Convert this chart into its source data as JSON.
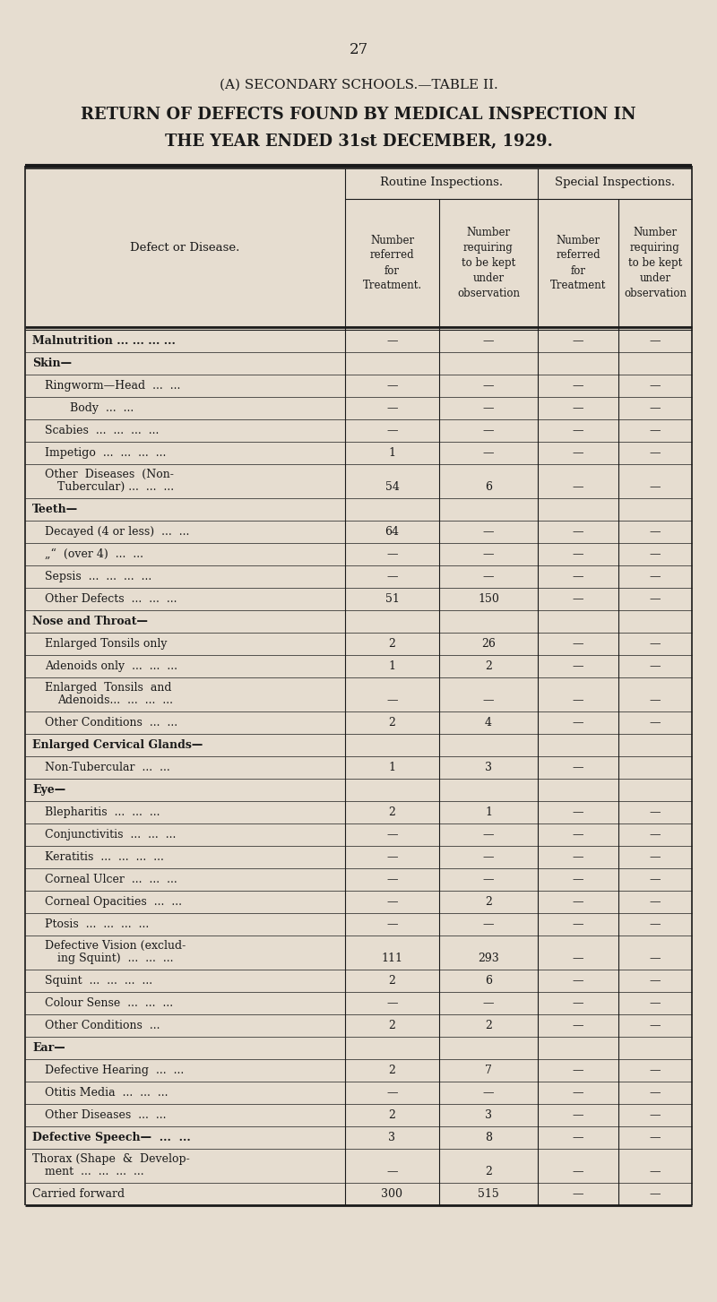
{
  "page_number": "27",
  "title_line1": "(A) SECONDARY SCHOOLS.—TABLE II.",
  "title_line2": "RETURN OF DEFECTS FOUND BY MEDICAL INSPECTION IN",
  "title_line3": "THE YEAR ENDED 31st DECEMBER, 1929.",
  "col_group1": "Routine Inspections.",
  "col_group2": "Special Inspections.",
  "col_sub1": "Number\nreferred\nfor\nTreatment.",
  "col_sub2": "Number\nrequiring\nto be kept\nunder\nobservation",
  "col_sub3": "Number\nreferred\nfor\nTreatment",
  "col_sub4": "Number\nrequiring\nto be kept\nunder\nobservation",
  "col_left_header": "Defect or Disease.",
  "rows": [
    {
      "label": "Malnutrition ... ... ... ...",
      "bold": true,
      "indent": 0,
      "multiline": false,
      "v1": "—",
      "v2": "—",
      "v3": "—",
      "v4": "—"
    },
    {
      "label": "Skin—",
      "bold": true,
      "indent": 0,
      "multiline": false,
      "v1": "",
      "v2": "",
      "v3": "",
      "v4": ""
    },
    {
      "label": "Ringworm—Head  ...  ...",
      "bold": false,
      "indent": 1,
      "multiline": false,
      "v1": "—",
      "v2": "—",
      "v3": "—",
      "v4": "—"
    },
    {
      "label": "Body  ...  ...",
      "bold": false,
      "indent": 3,
      "multiline": false,
      "v1": "—",
      "v2": "—",
      "v3": "—",
      "v4": "—"
    },
    {
      "label": "Scabies  ...  ...  ...  ...",
      "bold": false,
      "indent": 1,
      "multiline": false,
      "v1": "—",
      "v2": "—",
      "v3": "—",
      "v4": "—"
    },
    {
      "label": "Impetigo  ...  ...  ...  ...",
      "bold": false,
      "indent": 1,
      "multiline": false,
      "v1": "1",
      "v2": "—",
      "v3": "—",
      "v4": "—"
    },
    {
      "label": "Other  Diseases  (Non-",
      "bold": false,
      "indent": 1,
      "multiline": true,
      "label2": "Tubercular) ...  ...  ...",
      "indent2": 2,
      "v1": "54",
      "v2": "6",
      "v3": "—",
      "v4": "—"
    },
    {
      "label": "Teeth—",
      "bold": true,
      "indent": 0,
      "multiline": false,
      "v1": "",
      "v2": "",
      "v3": "",
      "v4": ""
    },
    {
      "label": "Decayed (4 or less)  ...  ...",
      "bold": false,
      "indent": 1,
      "multiline": false,
      "v1": "64",
      "v2": "—",
      "v3": "—",
      "v4": "—"
    },
    {
      "label": "„“  (over 4)  ...  ...",
      "bold": false,
      "indent": 1,
      "multiline": false,
      "v1": "—",
      "v2": "—",
      "v3": "—",
      "v4": "—"
    },
    {
      "label": "Sepsis  ...  ...  ...  ...",
      "bold": false,
      "indent": 1,
      "multiline": false,
      "v1": "—",
      "v2": "—",
      "v3": "—",
      "v4": "—"
    },
    {
      "label": "Other Defects  ...  ...  ...",
      "bold": false,
      "indent": 1,
      "multiline": false,
      "v1": "51",
      "v2": "150",
      "v3": "—",
      "v4": "—"
    },
    {
      "label": "Nose and Throat—",
      "bold": true,
      "indent": 0,
      "multiline": false,
      "v1": "",
      "v2": "",
      "v3": "",
      "v4": ""
    },
    {
      "label": "Enlarged Tonsils only",
      "bold": false,
      "indent": 1,
      "multiline": false,
      "v1": "2",
      "v2": "26",
      "v3": "—",
      "v4": "—"
    },
    {
      "label": "Adenoids only  ...  ...  ...",
      "bold": false,
      "indent": 1,
      "multiline": false,
      "v1": "1",
      "v2": "2",
      "v3": "—",
      "v4": "—"
    },
    {
      "label": "Enlarged  Tonsils  and",
      "bold": false,
      "indent": 1,
      "multiline": true,
      "label2": "Adenoids...  ...  ...  ...",
      "indent2": 2,
      "v1": "—",
      "v2": "—",
      "v3": "—",
      "v4": "—"
    },
    {
      "label": "Other Conditions  ...  ...",
      "bold": false,
      "indent": 1,
      "multiline": false,
      "v1": "2",
      "v2": "4",
      "v3": "—",
      "v4": "—"
    },
    {
      "label": "Enlarged Cervical Glands—",
      "bold": true,
      "indent": 0,
      "multiline": false,
      "v1": "",
      "v2": "",
      "v3": "",
      "v4": ""
    },
    {
      "label": "Non-Tubercular  ...  ...",
      "bold": false,
      "indent": 1,
      "multiline": false,
      "v1": "1",
      "v2": "3",
      "v3": "—",
      "v4": ""
    },
    {
      "label": "Eye—",
      "bold": true,
      "indent": 0,
      "multiline": false,
      "v1": "",
      "v2": "",
      "v3": "",
      "v4": ""
    },
    {
      "label": "Blepharitis  ...  ...  ...",
      "bold": false,
      "indent": 1,
      "multiline": false,
      "v1": "2",
      "v2": "1",
      "v3": "—",
      "v4": "—"
    },
    {
      "label": "Conjunctivitis  ...  ...  ...",
      "bold": false,
      "indent": 1,
      "multiline": false,
      "v1": "—",
      "v2": "—",
      "v3": "—",
      "v4": "—"
    },
    {
      "label": "Keratitis  ...  ...  ...  ...",
      "bold": false,
      "indent": 1,
      "multiline": false,
      "v1": "—",
      "v2": "—",
      "v3": "—",
      "v4": "—"
    },
    {
      "label": "Corneal Ulcer  ...  ...  ...",
      "bold": false,
      "indent": 1,
      "multiline": false,
      "v1": "—",
      "v2": "—",
      "v3": "—",
      "v4": "—"
    },
    {
      "label": "Corneal Opacities  ...  ...",
      "bold": false,
      "indent": 1,
      "multiline": false,
      "v1": "—",
      "v2": "2",
      "v3": "—",
      "v4": "—"
    },
    {
      "label": "Ptosis  ...  ...  ...  ...",
      "bold": false,
      "indent": 1,
      "multiline": false,
      "v1": "—",
      "v2": "—",
      "v3": "—",
      "v4": "—"
    },
    {
      "label": "Defective Vision (exclud-",
      "bold": false,
      "indent": 1,
      "multiline": true,
      "label2": "ing Squint)  ...  ...  ...",
      "indent2": 2,
      "v1": "111",
      "v2": "293",
      "v3": "—",
      "v4": "—"
    },
    {
      "label": "Squint  ...  ...  ...  ...",
      "bold": false,
      "indent": 1,
      "multiline": false,
      "v1": "2",
      "v2": "6",
      "v3": "—",
      "v4": "—"
    },
    {
      "label": "Colour Sense  ...  ...  ...",
      "bold": false,
      "indent": 1,
      "multiline": false,
      "v1": "—",
      "v2": "—",
      "v3": "—",
      "v4": "—"
    },
    {
      "label": "Other Conditions  ...",
      "bold": false,
      "indent": 1,
      "multiline": false,
      "v1": "2",
      "v2": "2",
      "v3": "—",
      "v4": "—"
    },
    {
      "label": "Ear—",
      "bold": true,
      "indent": 0,
      "multiline": false,
      "v1": "",
      "v2": "",
      "v3": "",
      "v4": ""
    },
    {
      "label": "Defective Hearing  ...  ...",
      "bold": false,
      "indent": 1,
      "multiline": false,
      "v1": "2",
      "v2": "7",
      "v3": "—",
      "v4": "—"
    },
    {
      "label": "Otitis Media  ...  ...  ...",
      "bold": false,
      "indent": 1,
      "multiline": false,
      "v1": "—",
      "v2": "—",
      "v3": "—",
      "v4": "—"
    },
    {
      "label": "Other Diseases  ...  ...",
      "bold": false,
      "indent": 1,
      "multiline": false,
      "v1": "2",
      "v2": "3",
      "v3": "—",
      "v4": "—"
    },
    {
      "label": "Defective Speech—  ...  ...",
      "bold": true,
      "indent": 0,
      "multiline": false,
      "v1": "3",
      "v2": "8",
      "v3": "—",
      "v4": "—"
    },
    {
      "label": "Thorax (Shape  &  Develop-",
      "bold": false,
      "indent": 0,
      "multiline": true,
      "label2": "ment  ...  ...  ...  ...",
      "indent2": 1,
      "v1": "—",
      "v2": "2",
      "v3": "—",
      "v4": "—"
    },
    {
      "label": "Carried forward",
      "bold": false,
      "indent": 0,
      "multiline": false,
      "v1": "300",
      "v2": "515",
      "v3": "—",
      "v4": "—"
    }
  ],
  "bg_color": "#e6ddd0",
  "text_color": "#1a1a1a",
  "line_color": "#1a1a1a"
}
